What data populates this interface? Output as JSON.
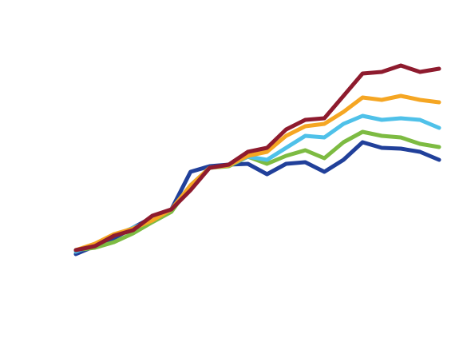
{
  "chart_data": {
    "type": "line",
    "series": [
      {
        "color": "#21409a",
        "values": [
          2,
          12,
          22,
          35,
          48,
          58,
          105,
          112,
          114,
          115,
          102,
          115,
          117,
          105,
          120,
          142,
          135,
          134,
          130,
          120
        ]
      },
      {
        "color": "#7dbb42",
        "values": [
          7,
          10,
          17,
          28,
          42,
          55,
          88,
          110,
          112,
          124,
          115,
          125,
          132,
          122,
          142,
          155,
          150,
          148,
          140,
          136
        ]
      },
      {
        "color": "#4fc1e9",
        "values": [
          5,
          15,
          25,
          35,
          45,
          58,
          88,
          110,
          113,
          124,
          120,
          135,
          150,
          148,
          165,
          175,
          170,
          172,
          170,
          160
        ]
      },
      {
        "color": "#f5a623",
        "values": [
          7,
          15,
          27,
          34,
          44,
          58,
          88,
          110,
          113,
          125,
          130,
          150,
          162,
          165,
          180,
          198,
          195,
          200,
          195,
          192
        ]
      },
      {
        "color": "#8e1b2e",
        "values": [
          7,
          12,
          25,
          32,
          50,
          58,
          82,
          110,
          114,
          130,
          135,
          158,
          170,
          172,
          200,
          228,
          230,
          238,
          230,
          234
        ]
      }
    ]
  }
}
